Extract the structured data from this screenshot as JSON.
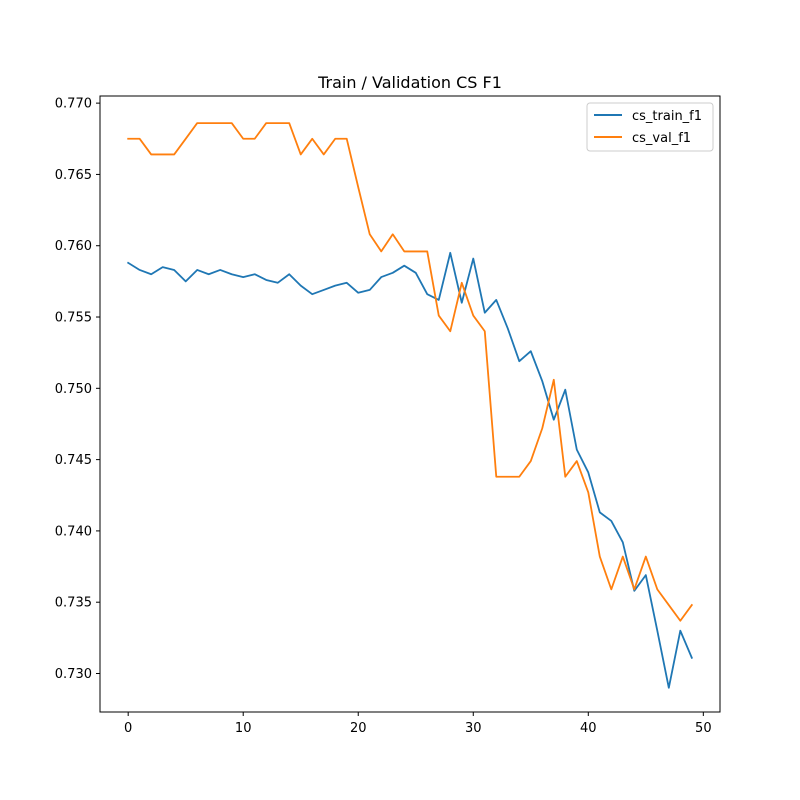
{
  "chart_data": {
    "type": "line",
    "title": "Train / Validation CS F1",
    "xlabel": "",
    "ylabel": "",
    "xlim": [
      -2.45,
      51.45
    ],
    "ylim": [
      0.7273,
      0.7705
    ],
    "xticks": [
      0,
      10,
      20,
      30,
      40,
      50
    ],
    "yticks": [
      0.73,
      0.735,
      0.74,
      0.745,
      0.75,
      0.755,
      0.76,
      0.765,
      0.77
    ],
    "ytick_decimals": 3,
    "grid": false,
    "legend_position": "top-right",
    "x": [
      0,
      1,
      2,
      3,
      4,
      5,
      6,
      7,
      8,
      9,
      10,
      11,
      12,
      13,
      14,
      15,
      16,
      17,
      18,
      19,
      20,
      21,
      22,
      23,
      24,
      25,
      26,
      27,
      28,
      29,
      30,
      31,
      32,
      33,
      34,
      35,
      36,
      37,
      38,
      39,
      40,
      41,
      42,
      43,
      44,
      45,
      46,
      47,
      48,
      49
    ],
    "series": [
      {
        "name": "cs_train_f1",
        "color": "#1f77b4",
        "values": [
          0.7588,
          0.7583,
          0.758,
          0.7585,
          0.7583,
          0.7575,
          0.7583,
          0.758,
          0.7583,
          0.758,
          0.7578,
          0.758,
          0.7576,
          0.7574,
          0.758,
          0.7572,
          0.7566,
          0.7569,
          0.7572,
          0.7574,
          0.7567,
          0.7569,
          0.7578,
          0.7581,
          0.7586,
          0.7581,
          0.7566,
          0.7562,
          0.7595,
          0.756,
          0.7591,
          0.7553,
          0.7562,
          0.7542,
          0.7519,
          0.7526,
          0.7505,
          0.7478,
          0.7499,
          0.7457,
          0.7441,
          0.7413,
          0.7407,
          0.7392,
          0.7358,
          0.7369,
          0.733,
          0.729,
          0.733,
          0.7311
        ]
      },
      {
        "name": "cs_val_f1",
        "color": "#ff7f0e",
        "values": [
          0.7675,
          0.7675,
          0.7664,
          0.7664,
          0.7664,
          0.7675,
          0.7686,
          0.7686,
          0.7686,
          0.7686,
          0.7675,
          0.7675,
          0.7686,
          0.7686,
          0.7686,
          0.7664,
          0.7675,
          0.7664,
          0.7675,
          0.7675,
          0.7641,
          0.7608,
          0.7596,
          0.7608,
          0.7596,
          0.7596,
          0.7596,
          0.7551,
          0.754,
          0.7574,
          0.7551,
          0.754,
          0.7438,
          0.7438,
          0.7438,
          0.7449,
          0.7472,
          0.7506,
          0.7438,
          0.7449,
          0.7427,
          0.7382,
          0.7359,
          0.7382,
          0.7359,
          0.7382,
          0.7359,
          0.7348,
          0.7337,
          0.7348
        ]
      }
    ]
  }
}
